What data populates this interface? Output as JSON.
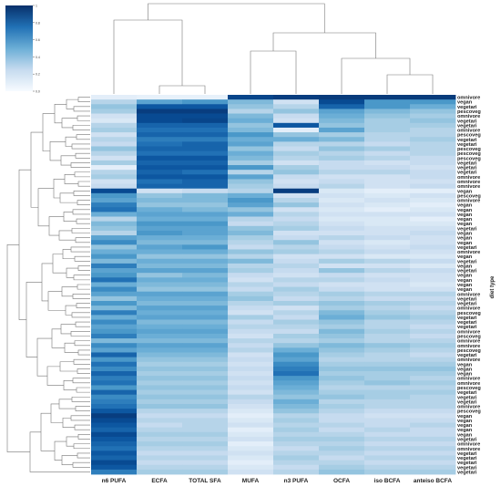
{
  "chart_data": {
    "type": "heatmap",
    "title": "",
    "xlabel": "",
    "ylabel": "diet type",
    "columns": [
      "n6 PUFA",
      "ECFA",
      "TOTAL SFA",
      "MUFA",
      "n3 PUFA",
      "OCFA",
      "iso BCFA",
      "anteiso BCFA"
    ],
    "colorbar": {
      "min": 0,
      "max": 1,
      "ticks": [
        0.0,
        0.2,
        0.4,
        0.6,
        0.8,
        1.0
      ],
      "tick_labels": [
        "0.0",
        "0.2",
        "0.4",
        "0.6",
        "0.8",
        "1"
      ],
      "color_low": "#f7fbff",
      "color_high": "#08306b"
    },
    "row_labels": [
      "omnivore",
      "vegan",
      "vegetari",
      "pescoveg",
      "omnivore",
      "vegetari",
      "vegetari",
      "omnivore",
      "pescoveg",
      "vegetari",
      "vegetari",
      "pescoveg",
      "pescoveg",
      "pescoveg",
      "vegetari",
      "vegetari",
      "vegetari",
      "omnivore",
      "omnivore",
      "omnivore",
      "vegan",
      "pescoveg",
      "omnivore",
      "vegan",
      "vegan",
      "vegan",
      "vegan",
      "vegan",
      "vegetari",
      "vegan",
      "vegan",
      "vegan",
      "vegetari",
      "omnivore",
      "vegan",
      "vegetari",
      "vegan",
      "vegetari",
      "vegan",
      "vegan",
      "vegan",
      "vegan",
      "omnivore",
      "vegetari",
      "vegetari",
      "omnivore",
      "pescoveg",
      "vegetari",
      "vegetari",
      "vegetari",
      "omnivore",
      "pescoveg",
      "omnivore",
      "omnivore",
      "pescoveg",
      "vegetari",
      "omnivore",
      "vegan",
      "vegan",
      "vegan",
      "omnivore",
      "omnivore",
      "pescoveg",
      "vegetari",
      "vegetari",
      "vegetari",
      "omnivore",
      "pescoveg",
      "vegan",
      "vegan",
      "vegan",
      "vegan",
      "vegan",
      "vegetari",
      "omnivore",
      "omnivore",
      "vegetari",
      "vegetari",
      "vegetari",
      "vegetari",
      "vegetari"
    ],
    "values": [
      [
        0.1,
        0.08,
        0.08,
        0.92,
        0.95,
        0.96,
        0.96,
        0.96
      ],
      [
        0.3,
        0.55,
        0.6,
        0.45,
        0.2,
        0.9,
        0.6,
        0.6
      ],
      [
        0.4,
        0.85,
        0.85,
        0.4,
        0.3,
        0.8,
        0.6,
        0.5
      ],
      [
        0.35,
        0.95,
        0.95,
        0.3,
        0.4,
        0.55,
        0.45,
        0.4
      ],
      [
        0.2,
        0.9,
        0.9,
        0.45,
        0.25,
        0.5,
        0.4,
        0.35
      ],
      [
        0.15,
        0.9,
        0.92,
        0.5,
        0.2,
        0.45,
        0.35,
        0.4
      ],
      [
        0.3,
        0.8,
        0.8,
        0.4,
        0.85,
        0.4,
        0.35,
        0.35
      ],
      [
        0.35,
        0.75,
        0.75,
        0.45,
        0.1,
        0.55,
        0.35,
        0.3
      ],
      [
        0.2,
        0.8,
        0.8,
        0.6,
        0.4,
        0.35,
        0.3,
        0.3
      ],
      [
        0.3,
        0.7,
        0.7,
        0.5,
        0.5,
        0.45,
        0.3,
        0.35
      ],
      [
        0.25,
        0.75,
        0.8,
        0.55,
        0.3,
        0.3,
        0.25,
        0.3
      ],
      [
        0.4,
        0.8,
        0.8,
        0.4,
        0.25,
        0.4,
        0.35,
        0.3
      ],
      [
        0.3,
        0.75,
        0.75,
        0.5,
        0.35,
        0.3,
        0.25,
        0.3
      ],
      [
        0.2,
        0.85,
        0.85,
        0.45,
        0.3,
        0.35,
        0.3,
        0.25
      ],
      [
        0.35,
        0.8,
        0.8,
        0.35,
        0.2,
        0.25,
        0.2,
        0.25
      ],
      [
        0.1,
        0.85,
        0.85,
        0.6,
        0.35,
        0.25,
        0.25,
        0.2
      ],
      [
        0.3,
        0.8,
        0.75,
        0.3,
        0.4,
        0.3,
        0.3,
        0.25
      ],
      [
        0.35,
        0.85,
        0.85,
        0.55,
        0.25,
        0.2,
        0.2,
        0.25
      ],
      [
        0.2,
        0.75,
        0.8,
        0.4,
        0.2,
        0.25,
        0.2,
        0.2
      ],
      [
        0.25,
        0.8,
        0.8,
        0.35,
        0.25,
        0.3,
        0.2,
        0.25
      ],
      [
        0.9,
        0.2,
        0.25,
        0.3,
        0.95,
        0.15,
        0.1,
        0.1
      ],
      [
        0.6,
        0.4,
        0.45,
        0.5,
        0.2,
        0.2,
        0.15,
        0.2
      ],
      [
        0.55,
        0.45,
        0.45,
        0.6,
        0.3,
        0.15,
        0.2,
        0.15
      ],
      [
        0.7,
        0.4,
        0.4,
        0.55,
        0.4,
        0.2,
        0.15,
        0.1
      ],
      [
        0.75,
        0.5,
        0.45,
        0.4,
        0.2,
        0.15,
        0.1,
        0.15
      ],
      [
        0.5,
        0.55,
        0.55,
        0.5,
        0.3,
        0.2,
        0.2,
        0.2
      ],
      [
        0.3,
        0.5,
        0.5,
        0.3,
        0.25,
        0.15,
        0.15,
        0.1
      ],
      [
        0.45,
        0.6,
        0.6,
        0.25,
        0.3,
        0.2,
        0.15,
        0.15
      ],
      [
        0.4,
        0.55,
        0.55,
        0.4,
        0.35,
        0.25,
        0.2,
        0.2
      ],
      [
        0.3,
        0.6,
        0.55,
        0.45,
        0.2,
        0.2,
        0.2,
        0.25
      ],
      [
        0.55,
        0.5,
        0.5,
        0.35,
        0.25,
        0.3,
        0.25,
        0.2
      ],
      [
        0.65,
        0.45,
        0.45,
        0.3,
        0.4,
        0.2,
        0.15,
        0.2
      ],
      [
        0.4,
        0.55,
        0.6,
        0.25,
        0.3,
        0.25,
        0.2,
        0.25
      ],
      [
        0.5,
        0.5,
        0.5,
        0.4,
        0.35,
        0.3,
        0.25,
        0.2
      ],
      [
        0.6,
        0.4,
        0.4,
        0.3,
        0.2,
        0.2,
        0.15,
        0.15
      ],
      [
        0.45,
        0.5,
        0.5,
        0.45,
        0.25,
        0.35,
        0.3,
        0.25
      ],
      [
        0.7,
        0.45,
        0.45,
        0.3,
        0.3,
        0.2,
        0.2,
        0.15
      ],
      [
        0.55,
        0.55,
        0.55,
        0.35,
        0.25,
        0.4,
        0.3,
        0.25
      ],
      [
        0.6,
        0.4,
        0.45,
        0.25,
        0.2,
        0.25,
        0.2,
        0.2
      ],
      [
        0.75,
        0.5,
        0.5,
        0.2,
        0.3,
        0.3,
        0.25,
        0.2
      ],
      [
        0.5,
        0.45,
        0.45,
        0.3,
        0.25,
        0.2,
        0.2,
        0.15
      ],
      [
        0.65,
        0.4,
        0.4,
        0.25,
        0.35,
        0.25,
        0.2,
        0.2
      ],
      [
        0.55,
        0.55,
        0.55,
        0.35,
        0.3,
        0.35,
        0.3,
        0.3
      ],
      [
        0.4,
        0.5,
        0.5,
        0.4,
        0.25,
        0.3,
        0.25,
        0.25
      ],
      [
        0.6,
        0.45,
        0.45,
        0.3,
        0.35,
        0.4,
        0.35,
        0.3
      ],
      [
        0.45,
        0.55,
        0.55,
        0.25,
        0.2,
        0.35,
        0.3,
        0.25
      ],
      [
        0.7,
        0.5,
        0.5,
        0.2,
        0.3,
        0.45,
        0.35,
        0.3
      ],
      [
        0.5,
        0.55,
        0.55,
        0.35,
        0.25,
        0.5,
        0.4,
        0.35
      ],
      [
        0.65,
        0.45,
        0.45,
        0.25,
        0.35,
        0.4,
        0.3,
        0.3
      ],
      [
        0.55,
        0.5,
        0.5,
        0.3,
        0.3,
        0.35,
        0.3,
        0.25
      ],
      [
        0.6,
        0.55,
        0.55,
        0.25,
        0.25,
        0.45,
        0.35,
        0.3
      ],
      [
        0.7,
        0.5,
        0.5,
        0.2,
        0.35,
        0.4,
        0.3,
        0.25
      ],
      [
        0.45,
        0.45,
        0.45,
        0.3,
        0.3,
        0.35,
        0.3,
        0.3
      ],
      [
        0.65,
        0.55,
        0.55,
        0.25,
        0.4,
        0.45,
        0.4,
        0.35
      ],
      [
        0.55,
        0.5,
        0.5,
        0.3,
        0.5,
        0.4,
        0.35,
        0.3
      ],
      [
        0.8,
        0.45,
        0.45,
        0.2,
        0.6,
        0.35,
        0.3,
        0.25
      ],
      [
        0.6,
        0.4,
        0.4,
        0.25,
        0.55,
        0.3,
        0.3,
        0.3
      ],
      [
        0.75,
        0.35,
        0.35,
        0.2,
        0.65,
        0.35,
        0.35,
        0.35
      ],
      [
        0.65,
        0.4,
        0.4,
        0.25,
        0.7,
        0.4,
        0.4,
        0.4
      ],
      [
        0.8,
        0.35,
        0.35,
        0.2,
        0.75,
        0.35,
        0.35,
        0.35
      ],
      [
        0.7,
        0.4,
        0.4,
        0.25,
        0.6,
        0.4,
        0.35,
        0.3
      ],
      [
        0.75,
        0.35,
        0.35,
        0.2,
        0.55,
        0.35,
        0.4,
        0.35
      ],
      [
        0.6,
        0.4,
        0.4,
        0.25,
        0.5,
        0.3,
        0.3,
        0.3
      ],
      [
        0.8,
        0.35,
        0.35,
        0.2,
        0.45,
        0.35,
        0.35,
        0.35
      ],
      [
        0.65,
        0.4,
        0.4,
        0.3,
        0.4,
        0.4,
        0.35,
        0.3
      ],
      [
        0.7,
        0.35,
        0.35,
        0.25,
        0.5,
        0.3,
        0.3,
        0.3
      ],
      [
        0.75,
        0.4,
        0.4,
        0.2,
        0.45,
        0.35,
        0.3,
        0.3
      ],
      [
        0.85,
        0.3,
        0.3,
        0.15,
        0.4,
        0.3,
        0.25,
        0.25
      ],
      [
        0.95,
        0.25,
        0.25,
        0.1,
        0.3,
        0.25,
        0.2,
        0.2
      ],
      [
        0.9,
        0.3,
        0.3,
        0.15,
        0.35,
        0.25,
        0.25,
        0.25
      ],
      [
        0.85,
        0.25,
        0.3,
        0.2,
        0.3,
        0.3,
        0.25,
        0.3
      ],
      [
        0.8,
        0.3,
        0.3,
        0.1,
        0.35,
        0.25,
        0.3,
        0.25
      ],
      [
        0.9,
        0.35,
        0.35,
        0.15,
        0.3,
        0.3,
        0.25,
        0.25
      ],
      [
        0.85,
        0.3,
        0.3,
        0.2,
        0.35,
        0.35,
        0.3,
        0.3
      ],
      [
        0.8,
        0.35,
        0.35,
        0.1,
        0.3,
        0.3,
        0.25,
        0.25
      ],
      [
        0.75,
        0.3,
        0.3,
        0.15,
        0.25,
        0.35,
        0.3,
        0.3
      ],
      [
        0.85,
        0.25,
        0.25,
        0.2,
        0.3,
        0.3,
        0.25,
        0.25
      ],
      [
        0.8,
        0.3,
        0.3,
        0.15,
        0.35,
        0.25,
        0.3,
        0.3
      ],
      [
        0.9,
        0.25,
        0.25,
        0.1,
        0.3,
        0.3,
        0.25,
        0.25
      ],
      [
        0.85,
        0.3,
        0.3,
        0.15,
        0.25,
        0.35,
        0.3,
        0.3
      ],
      [
        0.7,
        0.35,
        0.35,
        0.2,
        0.3,
        0.4,
        0.35,
        0.35
      ]
    ]
  }
}
